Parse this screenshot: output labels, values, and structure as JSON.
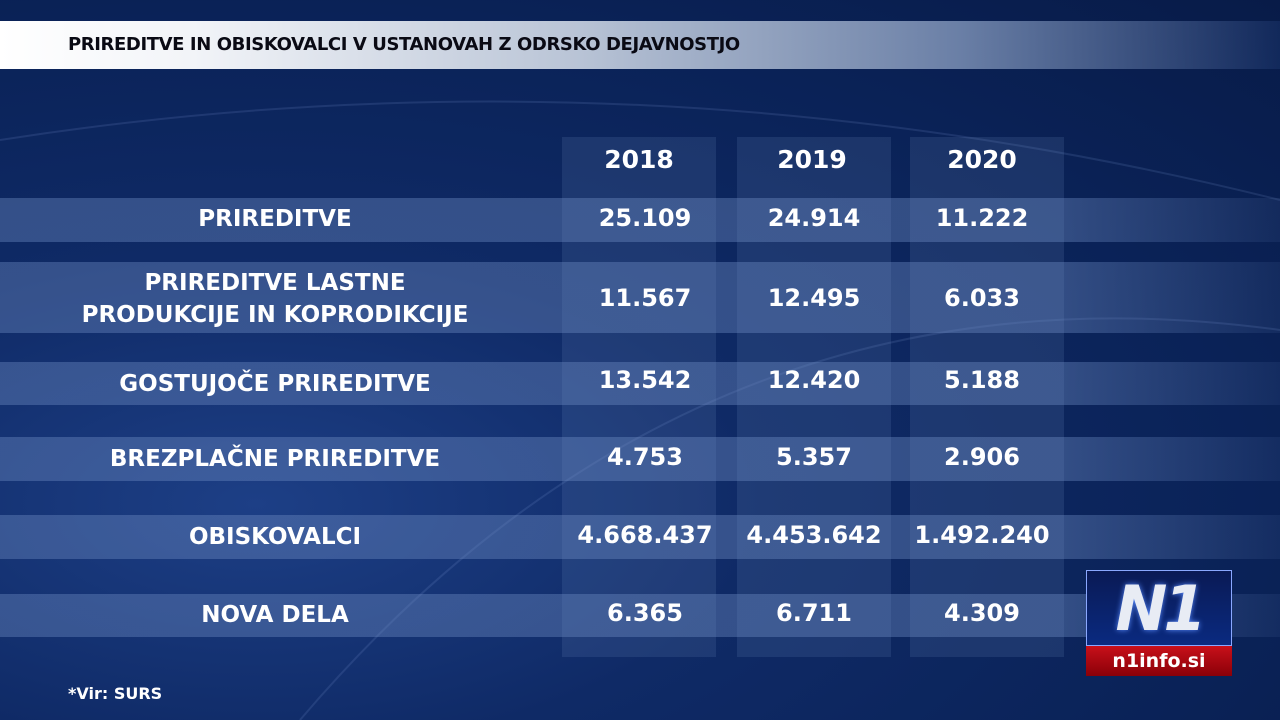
{
  "title": "PRIREDITVE IN OBISKOVALCI V USTANOVAH Z ODRSKO DEJAVNOSTJO",
  "years": [
    "2018",
    "2019",
    "2020"
  ],
  "rows": [
    {
      "label": "PRIREDITVE",
      "values": [
        "25.109",
        "24.914",
        "11.222"
      ]
    },
    {
      "label": "PRIREDITVE LASTNE PRODUKCIJE IN KOPRODIKCIJE",
      "values": [
        "11.567",
        "12.495",
        "6.033"
      ]
    },
    {
      "label": "GOSTUJOČE PRIREDITVE",
      "values": [
        "13.542",
        "12.420",
        "5.188"
      ]
    },
    {
      "label": "BREZPLAČNE PRIREDITVE",
      "values": [
        "4.753",
        "5.357",
        "2.906"
      ]
    },
    {
      "label": "OBISKOVALCI",
      "values": [
        "4.668.437",
        "4.453.642",
        "1.492.240"
      ]
    },
    {
      "label": "NOVA DELA",
      "values": [
        "6.365",
        "6.711",
        "4.309"
      ]
    }
  ],
  "source": "*Vir: SURS",
  "logo": {
    "mark": "N1",
    "site": "n1info.si"
  }
}
